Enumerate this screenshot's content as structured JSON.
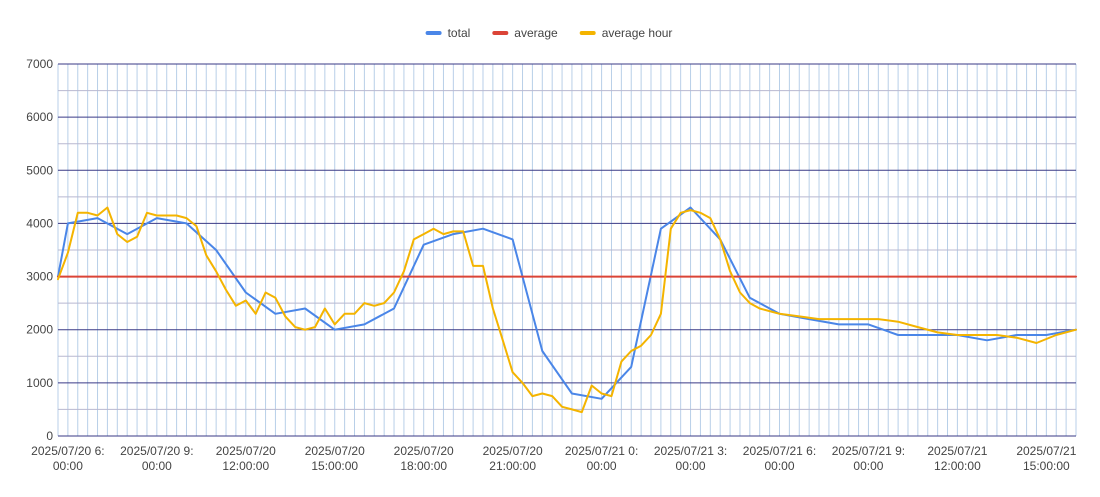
{
  "chart_data": {
    "type": "line",
    "title": "",
    "xlabel": "",
    "ylabel": "",
    "ylim": [
      0,
      7000
    ],
    "y_ticks": [
      0,
      1000,
      2000,
      3000,
      4000,
      5000,
      6000,
      7000
    ],
    "y_tick_labels": [
      "0",
      "1000",
      "2000",
      "3000",
      "4000",
      "5000",
      "6000",
      "7000"
    ],
    "grid": true,
    "legend_position": "top",
    "x_range": [
      "2025/07/20 05:40",
      "2025/07/21 16:00"
    ],
    "x_ticks": [
      {
        "at": "2025/07/20 06:00",
        "line1": "2025/07/20 6:",
        "line2": "00:00"
      },
      {
        "at": "2025/07/20 09:00",
        "line1": "2025/07/20 9:",
        "line2": "00:00"
      },
      {
        "at": "2025/07/20 12:00",
        "line1": "2025/07/20",
        "line2": "12:00:00"
      },
      {
        "at": "2025/07/20 15:00",
        "line1": "2025/07/20",
        "line2": "15:00:00"
      },
      {
        "at": "2025/07/20 18:00",
        "line1": "2025/07/20",
        "line2": "18:00:00"
      },
      {
        "at": "2025/07/20 21:00",
        "line1": "2025/07/20",
        "line2": "21:00:00"
      },
      {
        "at": "2025/07/21 00:00",
        "line1": "2025/07/21 0:",
        "line2": "00:00"
      },
      {
        "at": "2025/07/21 03:00",
        "line1": "2025/07/21 3:",
        "line2": "00:00"
      },
      {
        "at": "2025/07/21 06:00",
        "line1": "2025/07/21 6:",
        "line2": "00:00"
      },
      {
        "at": "2025/07/21 09:00",
        "line1": "2025/07/21 9:",
        "line2": "00:00"
      },
      {
        "at": "2025/07/21 12:00",
        "line1": "2025/07/21",
        "line2": "12:00:00"
      },
      {
        "at": "2025/07/21 15:00",
        "line1": "2025/07/21",
        "line2": "15:00:00"
      }
    ],
    "series": [
      {
        "name": "total",
        "color": "#4a86e8",
        "x": [
          "2025/07/20 05:40",
          "2025/07/20 06:00",
          "2025/07/20 07:00",
          "2025/07/20 08:00",
          "2025/07/20 09:00",
          "2025/07/20 10:00",
          "2025/07/20 11:00",
          "2025/07/20 12:00",
          "2025/07/20 13:00",
          "2025/07/20 14:00",
          "2025/07/20 15:00",
          "2025/07/20 16:00",
          "2025/07/20 17:00",
          "2025/07/20 18:00",
          "2025/07/20 19:00",
          "2025/07/20 20:00",
          "2025/07/20 21:00",
          "2025/07/20 22:00",
          "2025/07/20 23:00",
          "2025/07/21 00:00",
          "2025/07/21 01:00",
          "2025/07/21 02:00",
          "2025/07/21 03:00",
          "2025/07/21 04:00",
          "2025/07/21 05:00",
          "2025/07/21 06:00",
          "2025/07/21 07:00",
          "2025/07/21 08:00",
          "2025/07/21 09:00",
          "2025/07/21 10:00",
          "2025/07/21 11:00",
          "2025/07/21 12:00",
          "2025/07/21 13:00",
          "2025/07/21 14:00",
          "2025/07/21 15:00",
          "2025/07/21 16:00"
        ],
        "values": [
          3000,
          4000,
          4100,
          3800,
          4100,
          4000,
          3500,
          2700,
          2300,
          2400,
          2000,
          2100,
          2400,
          3600,
          3800,
          3900,
          3700,
          1600,
          800,
          700,
          1300,
          3900,
          4300,
          3700,
          2600,
          2300,
          2200,
          2100,
          2100,
          1900,
          1900,
          1900,
          1800,
          1900,
          1900,
          2000
        ]
      },
      {
        "name": "average",
        "color": "#db4437",
        "x": [
          "2025/07/20 05:40",
          "2025/07/21 16:00"
        ],
        "values": [
          3000,
          3000
        ]
      },
      {
        "name": "average hour",
        "color": "#f4b400",
        "x": [
          "2025/07/20 05:40",
          "2025/07/20 06:00",
          "2025/07/20 06:20",
          "2025/07/20 06:40",
          "2025/07/20 07:00",
          "2025/07/20 07:20",
          "2025/07/20 07:40",
          "2025/07/20 08:00",
          "2025/07/20 08:20",
          "2025/07/20 08:40",
          "2025/07/20 09:00",
          "2025/07/20 09:20",
          "2025/07/20 09:40",
          "2025/07/20 10:00",
          "2025/07/20 10:20",
          "2025/07/20 10:40",
          "2025/07/20 11:00",
          "2025/07/20 11:20",
          "2025/07/20 11:40",
          "2025/07/20 12:00",
          "2025/07/20 12:20",
          "2025/07/20 12:40",
          "2025/07/20 13:00",
          "2025/07/20 13:20",
          "2025/07/20 13:40",
          "2025/07/20 14:00",
          "2025/07/20 14:20",
          "2025/07/20 14:40",
          "2025/07/20 15:00",
          "2025/07/20 15:20",
          "2025/07/20 15:40",
          "2025/07/20 16:00",
          "2025/07/20 16:20",
          "2025/07/20 16:40",
          "2025/07/20 17:00",
          "2025/07/20 17:20",
          "2025/07/20 17:40",
          "2025/07/20 18:00",
          "2025/07/20 18:20",
          "2025/07/20 18:40",
          "2025/07/20 19:00",
          "2025/07/20 19:20",
          "2025/07/20 19:40",
          "2025/07/20 20:00",
          "2025/07/20 20:20",
          "2025/07/20 20:40",
          "2025/07/20 21:00",
          "2025/07/20 21:20",
          "2025/07/20 21:40",
          "2025/07/20 22:00",
          "2025/07/20 22:20",
          "2025/07/20 22:40",
          "2025/07/20 23:00",
          "2025/07/20 23:20",
          "2025/07/20 23:40",
          "2025/07/21 00:00",
          "2025/07/21 00:20",
          "2025/07/21 00:40",
          "2025/07/21 01:00",
          "2025/07/21 01:20",
          "2025/07/21 01:40",
          "2025/07/21 02:00",
          "2025/07/21 02:20",
          "2025/07/21 02:40",
          "2025/07/21 03:00",
          "2025/07/21 03:20",
          "2025/07/21 03:40",
          "2025/07/21 04:00",
          "2025/07/21 04:20",
          "2025/07/21 04:40",
          "2025/07/21 05:00",
          "2025/07/21 05:20",
          "2025/07/21 05:40",
          "2025/07/21 06:00",
          "2025/07/21 06:40",
          "2025/07/21 07:20",
          "2025/07/21 08:00",
          "2025/07/21 08:40",
          "2025/07/21 09:20",
          "2025/07/21 10:00",
          "2025/07/21 10:40",
          "2025/07/21 11:20",
          "2025/07/21 12:00",
          "2025/07/21 12:40",
          "2025/07/21 13:20",
          "2025/07/21 14:00",
          "2025/07/21 14:40",
          "2025/07/21 15:20",
          "2025/07/21 16:00"
        ],
        "values": [
          2950,
          3450,
          4200,
          4200,
          4150,
          4300,
          3800,
          3650,
          3750,
          4200,
          4150,
          4150,
          4150,
          4100,
          3950,
          3400,
          3100,
          2750,
          2450,
          2550,
          2300,
          2700,
          2600,
          2250,
          2050,
          2000,
          2050,
          2400,
          2100,
          2300,
          2300,
          2500,
          2450,
          2500,
          2700,
          3100,
          3700,
          3800,
          3900,
          3800,
          3850,
          3850,
          3200,
          3200,
          2400,
          1800,
          1200,
          1000,
          750,
          800,
          750,
          550,
          500,
          450,
          950,
          800,
          750,
          1400,
          1600,
          1700,
          1900,
          2300,
          3900,
          4200,
          4250,
          4200,
          4100,
          3700,
          3100,
          2700,
          2500,
          2400,
          2350,
          2300,
          2250,
          2200,
          2200,
          2200,
          2200,
          2150,
          2050,
          1950,
          1900,
          1900,
          1900,
          1850,
          1750,
          1900,
          2000
        ]
      }
    ]
  }
}
